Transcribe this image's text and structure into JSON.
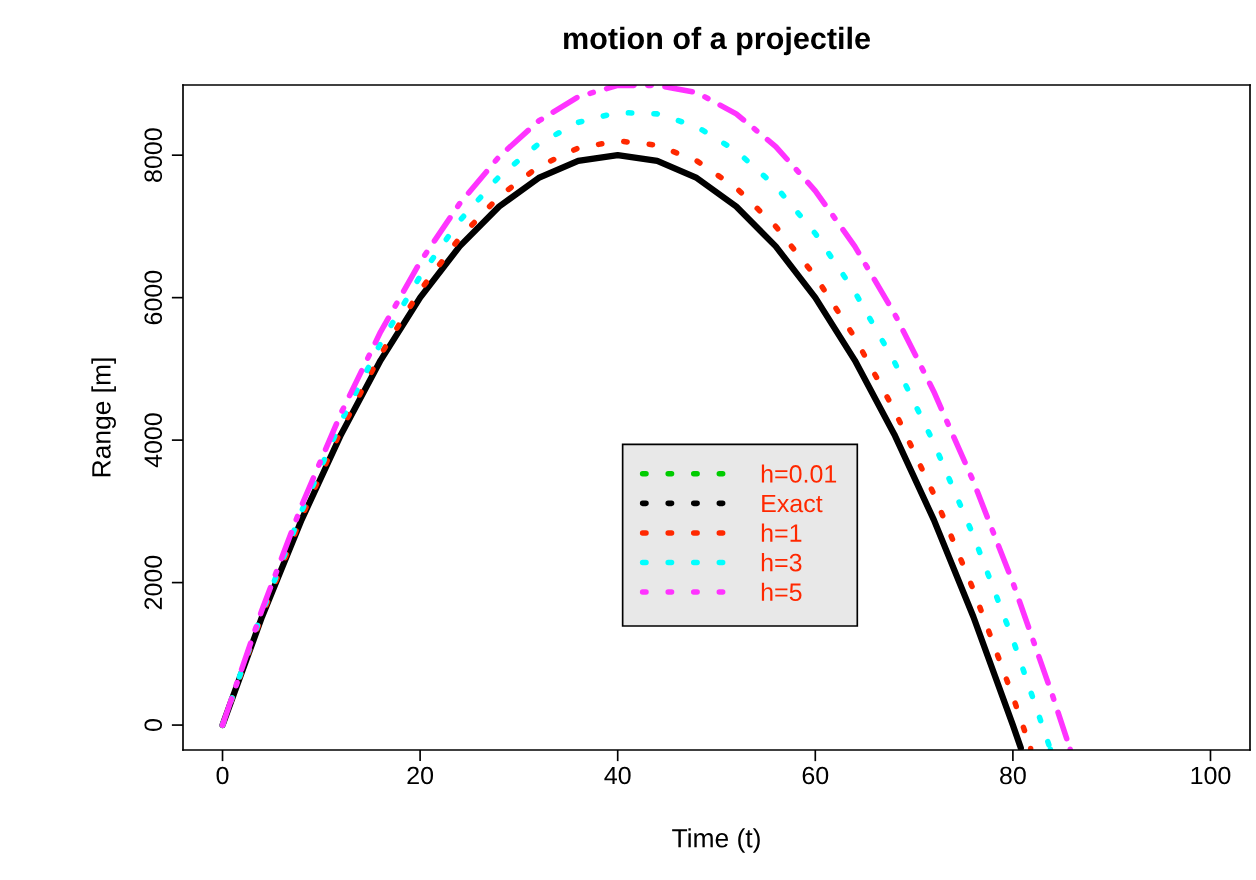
{
  "chart_data": {
    "type": "line",
    "title": "motion of a projectile",
    "xlabel": "Time (t)",
    "ylabel": "Range [m]",
    "xlim": [
      -4,
      104
    ],
    "ylim": [
      -350,
      8985
    ],
    "xticks": [
      0,
      20,
      40,
      60,
      80,
      100
    ],
    "yticks": [
      0,
      2000,
      4000,
      6000,
      8000
    ],
    "legend": "center",
    "grid": false,
    "series": [
      {
        "name": "h=0.01",
        "color": "#00cc00",
        "line_style": "dotted"
      },
      {
        "name": "Exact",
        "color": "#000000",
        "line_style": "solid",
        "x": [
          0,
          4,
          8,
          12,
          16,
          20,
          24,
          28,
          32,
          36,
          40,
          44,
          48,
          52,
          56,
          60,
          64,
          68,
          72,
          76,
          80,
          80.8
        ],
        "values": [
          0,
          1520,
          2880,
          4080,
          5120,
          6000,
          6720,
          7280,
          7680,
          7920,
          8000,
          7920,
          7680,
          7280,
          6720,
          6000,
          5120,
          4080,
          2880,
          1520,
          0,
          -320
        ]
      },
      {
        "name": "h=1",
        "color": "#ff2800",
        "line_style": "dotted",
        "x": [
          0,
          4,
          8,
          12,
          16,
          20,
          24,
          28,
          32,
          36,
          40,
          44,
          48,
          52,
          56,
          60,
          64,
          68,
          72,
          76,
          80,
          81.8
        ],
        "values": [
          0,
          1540,
          2920,
          4140,
          5200,
          6100,
          6840,
          7420,
          7840,
          8100,
          8200,
          8140,
          7920,
          7540,
          7000,
          6300,
          5440,
          4420,
          3240,
          1900,
          400,
          -330
        ]
      },
      {
        "name": "h=3",
        "color": "#00ffff",
        "line_style": "dotted",
        "x": [
          0,
          4,
          8,
          12,
          16,
          20,
          24,
          28,
          32,
          36,
          40,
          44,
          48,
          52,
          56,
          60,
          64,
          68,
          72,
          76,
          80,
          83.8
        ],
        "values": [
          0,
          1580,
          3000,
          4260,
          5360,
          6300,
          7080,
          7700,
          8160,
          8460,
          8600,
          8580,
          8400,
          8060,
          7560,
          6900,
          6080,
          5100,
          3960,
          2660,
          1200,
          -340
        ]
      },
      {
        "name": "h=5",
        "color": "#ff33ff",
        "line_style": "dashed",
        "x": [
          0,
          4,
          8,
          12,
          16,
          20,
          24,
          28,
          32,
          36,
          40,
          44,
          48,
          52,
          56,
          60,
          64,
          68,
          72,
          76,
          80,
          84,
          85.8
        ],
        "values": [
          0,
          1620,
          3080,
          4380,
          5520,
          6500,
          7320,
          7980,
          8480,
          8820,
          8980,
          8980,
          8880,
          8580,
          8120,
          7500,
          6720,
          5780,
          4680,
          3420,
          2000,
          420,
          -340
        ]
      }
    ]
  }
}
